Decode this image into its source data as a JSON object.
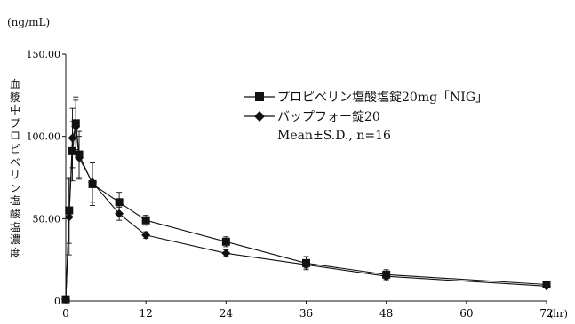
{
  "chart_data": {
    "type": "line",
    "y_unit": "(ng/mL)",
    "x_unit": "(hr)",
    "ylabel": "血漿中プロピベリン塩酸塩濃度",
    "xlim": [
      0,
      72
    ],
    "ylim": [
      0,
      150
    ],
    "x_ticks": [
      "0",
      "12",
      "24",
      "36",
      "48",
      "60",
      "72"
    ],
    "y_ticks": [
      "0",
      "50.00",
      "100.00",
      "150.00"
    ],
    "grid": false,
    "legend_position": "top-right",
    "series": [
      {
        "name": "プロピベリン塩酸塩錠20mg「NIG」",
        "marker": "square",
        "x": [
          0,
          0.5,
          1,
          1.5,
          2,
          4,
          8,
          12,
          24,
          36,
          48,
          72
        ],
        "y": [
          1,
          55,
          91,
          108,
          89,
          71,
          60,
          49,
          36,
          23,
          16,
          10
        ],
        "err": [
          0,
          20,
          18,
          16,
          14,
          13,
          6,
          3,
          3,
          4,
          3,
          2
        ]
      },
      {
        "name": "バップフォー錠20",
        "marker": "diamond",
        "x": [
          0,
          0.5,
          1,
          1.5,
          2,
          4,
          8,
          12,
          24,
          36,
          48,
          72
        ],
        "y": [
          1,
          51,
          99,
          106,
          87,
          72,
          53,
          40,
          29,
          22,
          15,
          9
        ],
        "err": [
          0,
          23,
          18,
          16,
          13,
          12,
          4,
          2,
          2,
          2,
          2,
          1
        ]
      }
    ],
    "annotation": "Mean±S.D., n=16"
  }
}
